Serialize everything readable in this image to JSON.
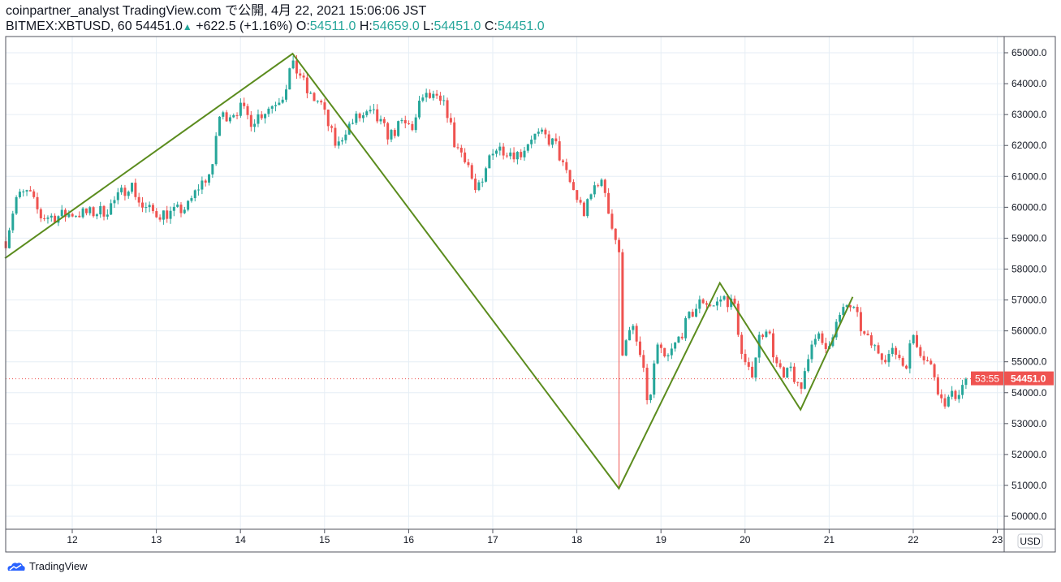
{
  "header": {
    "line1": "coinpartner_analyst TradingView.com で公開, 4月 22, 2021 15:06:06 JST",
    "symbol": "BITMEX:XBTUSD, 60 54451.0",
    "change": "+622.5 (+1.16%)",
    "o_label": "O:",
    "o": "54511.0",
    "h_label": "H:",
    "h": "54659.0",
    "l_label": "L:",
    "l": "54451.0",
    "c_label": "C:",
    "c": "54451.0"
  },
  "currency_badge": "USD",
  "last_price": {
    "price": "54451.0",
    "countdown": "53:55",
    "value": 54451
  },
  "footer": {
    "logo_text": "TradingView"
  },
  "colors": {
    "up": "#26a69a",
    "down": "#ef5350",
    "zigzag": "#5b8c1e",
    "grid": "#e6eef5"
  },
  "chart_data": {
    "type": "candlestick",
    "interval": "60",
    "xlabel": "",
    "ylabel": "USD",
    "xlim": [
      11.2,
      23.1
    ],
    "ylim": [
      49600,
      65500
    ],
    "x_ticks": [
      "12",
      "13",
      "14",
      "15",
      "16",
      "17",
      "18",
      "19",
      "20",
      "21",
      "22",
      "23"
    ],
    "y_ticks": [
      50000,
      51000,
      52000,
      53000,
      54000,
      55000,
      56000,
      57000,
      58000,
      59000,
      60000,
      61000,
      62000,
      63000,
      64000,
      65000
    ],
    "y_tick_labels": [
      "50000.0",
      "51000.0",
      "52000.0",
      "53000.0",
      "54000.0",
      "55000.0",
      "56000.0",
      "57000.0",
      "58000.0",
      "59000.0",
      "60000.0",
      "61000.0",
      "62000.0",
      "63000.0",
      "64000.0",
      "65000.0"
    ],
    "price_path_day_close": [
      [
        11.21,
        58900
      ],
      [
        11.33,
        60300
      ],
      [
        11.48,
        60500
      ],
      [
        11.62,
        59700
      ],
      [
        11.82,
        59700
      ],
      [
        12.0,
        59800
      ],
      [
        12.2,
        59800
      ],
      [
        12.4,
        59900
      ],
      [
        12.54,
        60300
      ],
      [
        12.69,
        60800
      ],
      [
        12.83,
        60000
      ],
      [
        13.0,
        59800
      ],
      [
        13.17,
        59800
      ],
      [
        13.37,
        60000
      ],
      [
        13.51,
        60700
      ],
      [
        13.67,
        61200
      ],
      [
        13.73,
        62900
      ],
      [
        13.84,
        63000
      ],
      [
        14.0,
        63200
      ],
      [
        14.13,
        62800
      ],
      [
        14.23,
        63000
      ],
      [
        14.37,
        63300
      ],
      [
        14.52,
        63700
      ],
      [
        14.6,
        64600
      ],
      [
        14.71,
        64300
      ],
      [
        14.81,
        63600
      ],
      [
        14.95,
        63400
      ],
      [
        15.05,
        62600
      ],
      [
        15.15,
        61900
      ],
      [
        15.24,
        62500
      ],
      [
        15.39,
        62900
      ],
      [
        15.58,
        63000
      ],
      [
        15.77,
        62300
      ],
      [
        15.92,
        62700
      ],
      [
        16.06,
        62600
      ],
      [
        16.16,
        63600
      ],
      [
        16.3,
        63500
      ],
      [
        16.45,
        63200
      ],
      [
        16.55,
        62000
      ],
      [
        16.69,
        61600
      ],
      [
        16.79,
        60500
      ],
      [
        16.88,
        60700
      ],
      [
        16.98,
        61900
      ],
      [
        17.13,
        61900
      ],
      [
        17.32,
        61700
      ],
      [
        17.46,
        62300
      ],
      [
        17.61,
        62300
      ],
      [
        17.75,
        62000
      ],
      [
        17.85,
        61200
      ],
      [
        18.0,
        60300
      ],
      [
        18.09,
        59800
      ],
      [
        18.24,
        60900
      ],
      [
        18.33,
        60600
      ],
      [
        18.43,
        59200
      ],
      [
        18.5,
        58700
      ],
      [
        18.52,
        55000
      ],
      [
        18.57,
        55800
      ],
      [
        18.67,
        56000
      ],
      [
        18.77,
        55000
      ],
      [
        18.86,
        53400
      ],
      [
        18.94,
        55500
      ],
      [
        19.06,
        55000
      ],
      [
        19.2,
        55700
      ],
      [
        19.35,
        56500
      ],
      [
        19.49,
        57000
      ],
      [
        19.64,
        56800
      ],
      [
        19.73,
        57100
      ],
      [
        19.88,
        56800
      ],
      [
        19.97,
        55000
      ],
      [
        20.07,
        54500
      ],
      [
        20.17,
        55800
      ],
      [
        20.26,
        56200
      ],
      [
        20.36,
        55000
      ],
      [
        20.46,
        54400
      ],
      [
        20.55,
        54800
      ],
      [
        20.65,
        53900
      ],
      [
        20.75,
        55200
      ],
      [
        20.84,
        56000
      ],
      [
        20.94,
        55300
      ],
      [
        21.08,
        56200
      ],
      [
        21.23,
        56900
      ],
      [
        21.32,
        56500
      ],
      [
        21.42,
        55800
      ],
      [
        21.52,
        55500
      ],
      [
        21.66,
        55200
      ],
      [
        21.81,
        55300
      ],
      [
        21.9,
        54800
      ],
      [
        22.0,
        55900
      ],
      [
        22.1,
        55300
      ],
      [
        22.24,
        54700
      ],
      [
        22.34,
        53700
      ],
      [
        22.43,
        53800
      ],
      [
        22.53,
        54000
      ],
      [
        22.63,
        54451
      ]
    ],
    "flash_crash_low": [
      18.51,
      50900
    ],
    "zigzag": [
      [
        11.2,
        58350
      ],
      [
        14.62,
        64970
      ],
      [
        18.5,
        50900
      ],
      [
        19.7,
        57550
      ],
      [
        20.66,
        53450
      ],
      [
        21.28,
        57100
      ]
    ]
  }
}
